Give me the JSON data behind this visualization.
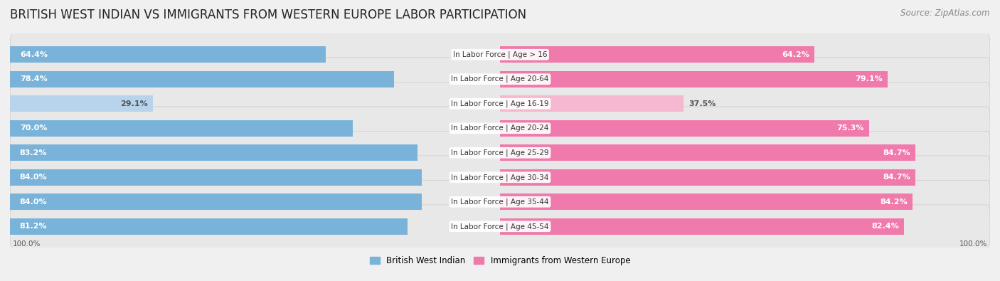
{
  "title": "BRITISH WEST INDIAN VS IMMIGRANTS FROM WESTERN EUROPE LABOR PARTICIPATION",
  "source": "Source: ZipAtlas.com",
  "categories": [
    "In Labor Force | Age > 16",
    "In Labor Force | Age 20-64",
    "In Labor Force | Age 16-19",
    "In Labor Force | Age 20-24",
    "In Labor Force | Age 25-29",
    "In Labor Force | Age 30-34",
    "In Labor Force | Age 35-44",
    "In Labor Force | Age 45-54"
  ],
  "british_values": [
    64.4,
    78.4,
    29.1,
    70.0,
    83.2,
    84.0,
    84.0,
    81.2
  ],
  "western_europe_values": [
    64.2,
    79.1,
    37.5,
    75.3,
    84.7,
    84.7,
    84.2,
    82.4
  ],
  "british_color": "#7ab3d9",
  "western_europe_color": "#f07aab",
  "british_color_light": "#b8d4ec",
  "western_europe_color_light": "#f5b8d0",
  "bar_height": 0.68,
  "background_color": "#f0f0f0",
  "row_bg_color": "#e8e8e8",
  "legend_british": "British West Indian",
  "legend_western": "Immigrants from Western Europe",
  "max_value": 100.0,
  "title_fontsize": 12,
  "source_fontsize": 8.5,
  "bar_label_fontsize": 8,
  "category_label_fontsize": 7.5,
  "legend_fontsize": 8.5,
  "axis_label_fontsize": 7.5
}
